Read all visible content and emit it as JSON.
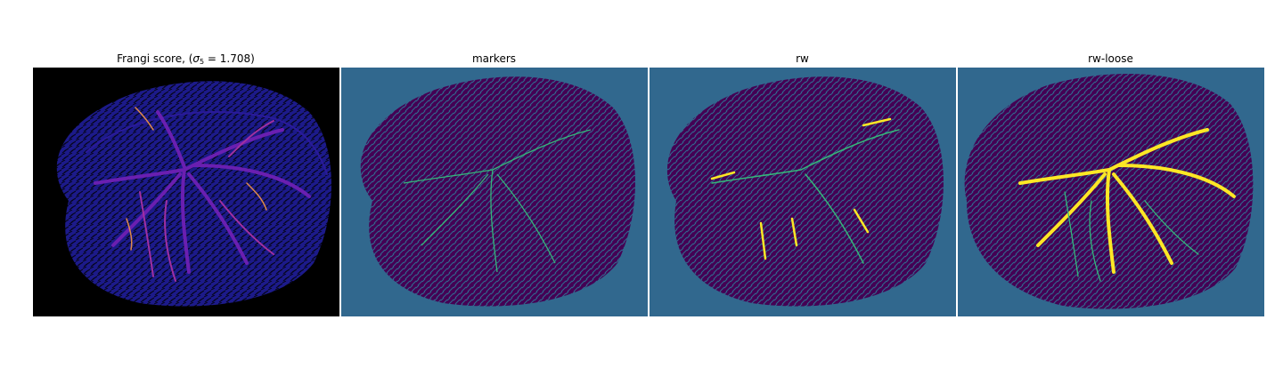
{
  "figure": {
    "panels": [
      {
        "title_prefix": "Frangi score, (",
        "title_symbol": "σ",
        "title_sub": "5",
        "title_suffix": " = 1.708)",
        "colormap": "magma/plasma",
        "background": "#000000"
      },
      {
        "title": "markers",
        "colormap": "viridis",
        "background": "#31688e"
      },
      {
        "title": "rw",
        "colormap": "viridis",
        "background": "#31688e"
      },
      {
        "title": "rw-loose",
        "colormap": "viridis",
        "background": "#31688e"
      }
    ]
  },
  "colors": {
    "frangi_tissue": "#1c1a8a",
    "frangi_dark": "#0a0a3a",
    "frangi_vessel": "#6a1fb0",
    "frangi_hot": "#e08a4a",
    "viridis_dark": "#440154",
    "viridis_mid": "#31688e",
    "viridis_teal": "#35b779",
    "viridis_yellow": "#fde725"
  }
}
